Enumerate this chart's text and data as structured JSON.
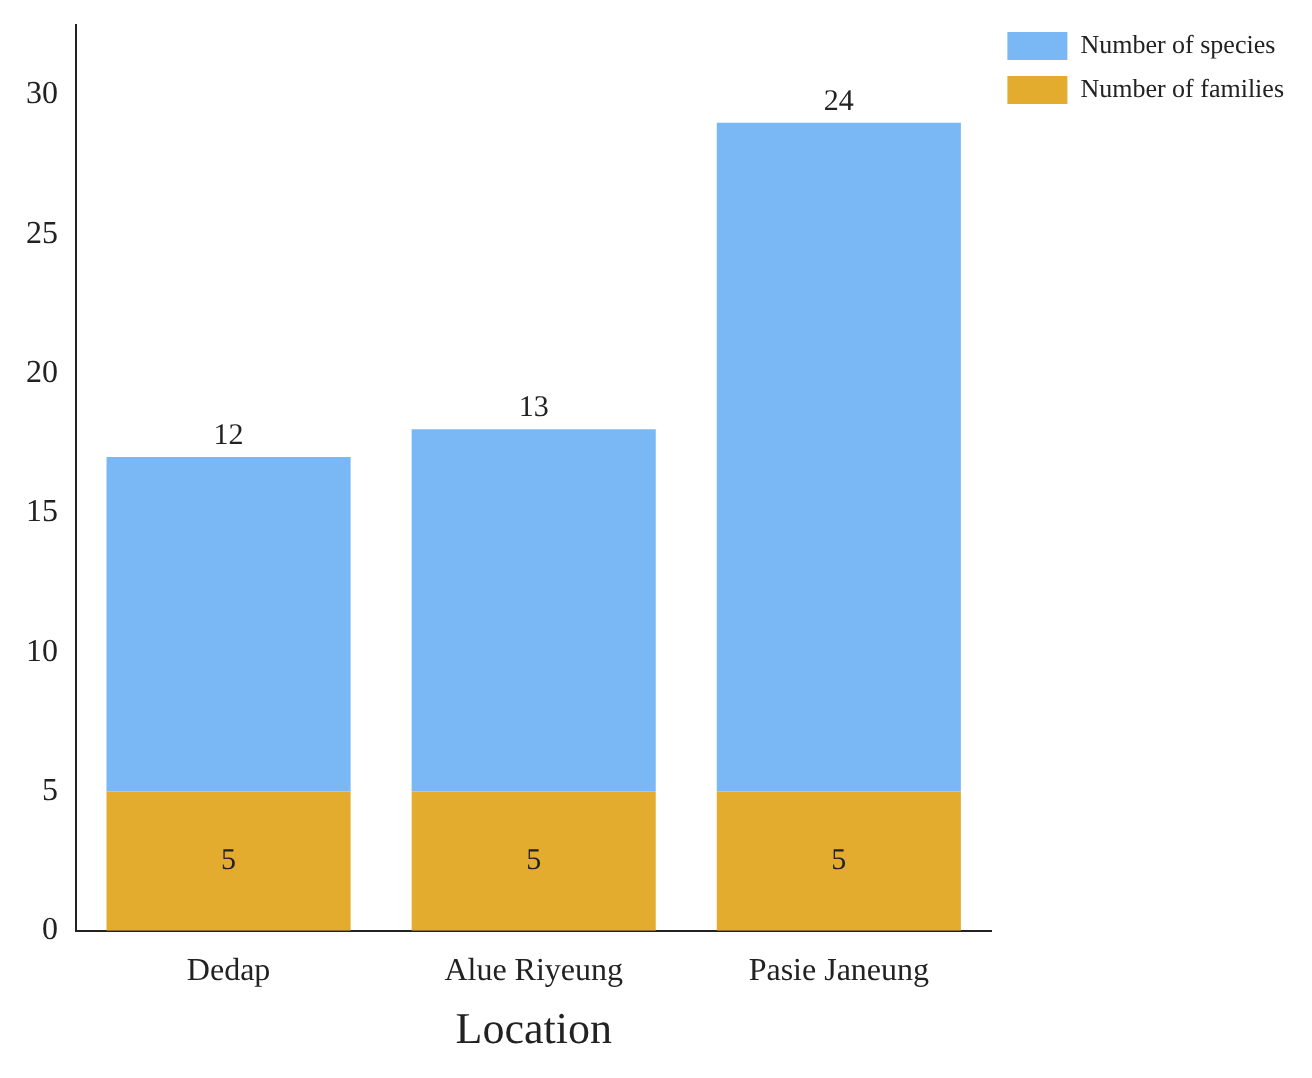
{
  "chart_data": {
    "type": "bar",
    "xlabel": "Location",
    "categories": [
      "Dedap",
      "Alue Riyeung",
      "Pasie Janeung"
    ],
    "series": [
      {
        "name": "Number of families",
        "color": "#e3ac2f",
        "values": [
          5,
          5,
          5
        ]
      },
      {
        "name": "Number of species",
        "color": "#7ab8f5",
        "values": [
          12,
          13,
          24
        ]
      }
    ],
    "stacked": true,
    "ylim": [
      0,
      32.5
    ],
    "yticks": [
      0,
      5,
      10,
      15,
      20,
      25,
      30
    ],
    "data_labels": true,
    "legend": "top right",
    "grid": false
  }
}
